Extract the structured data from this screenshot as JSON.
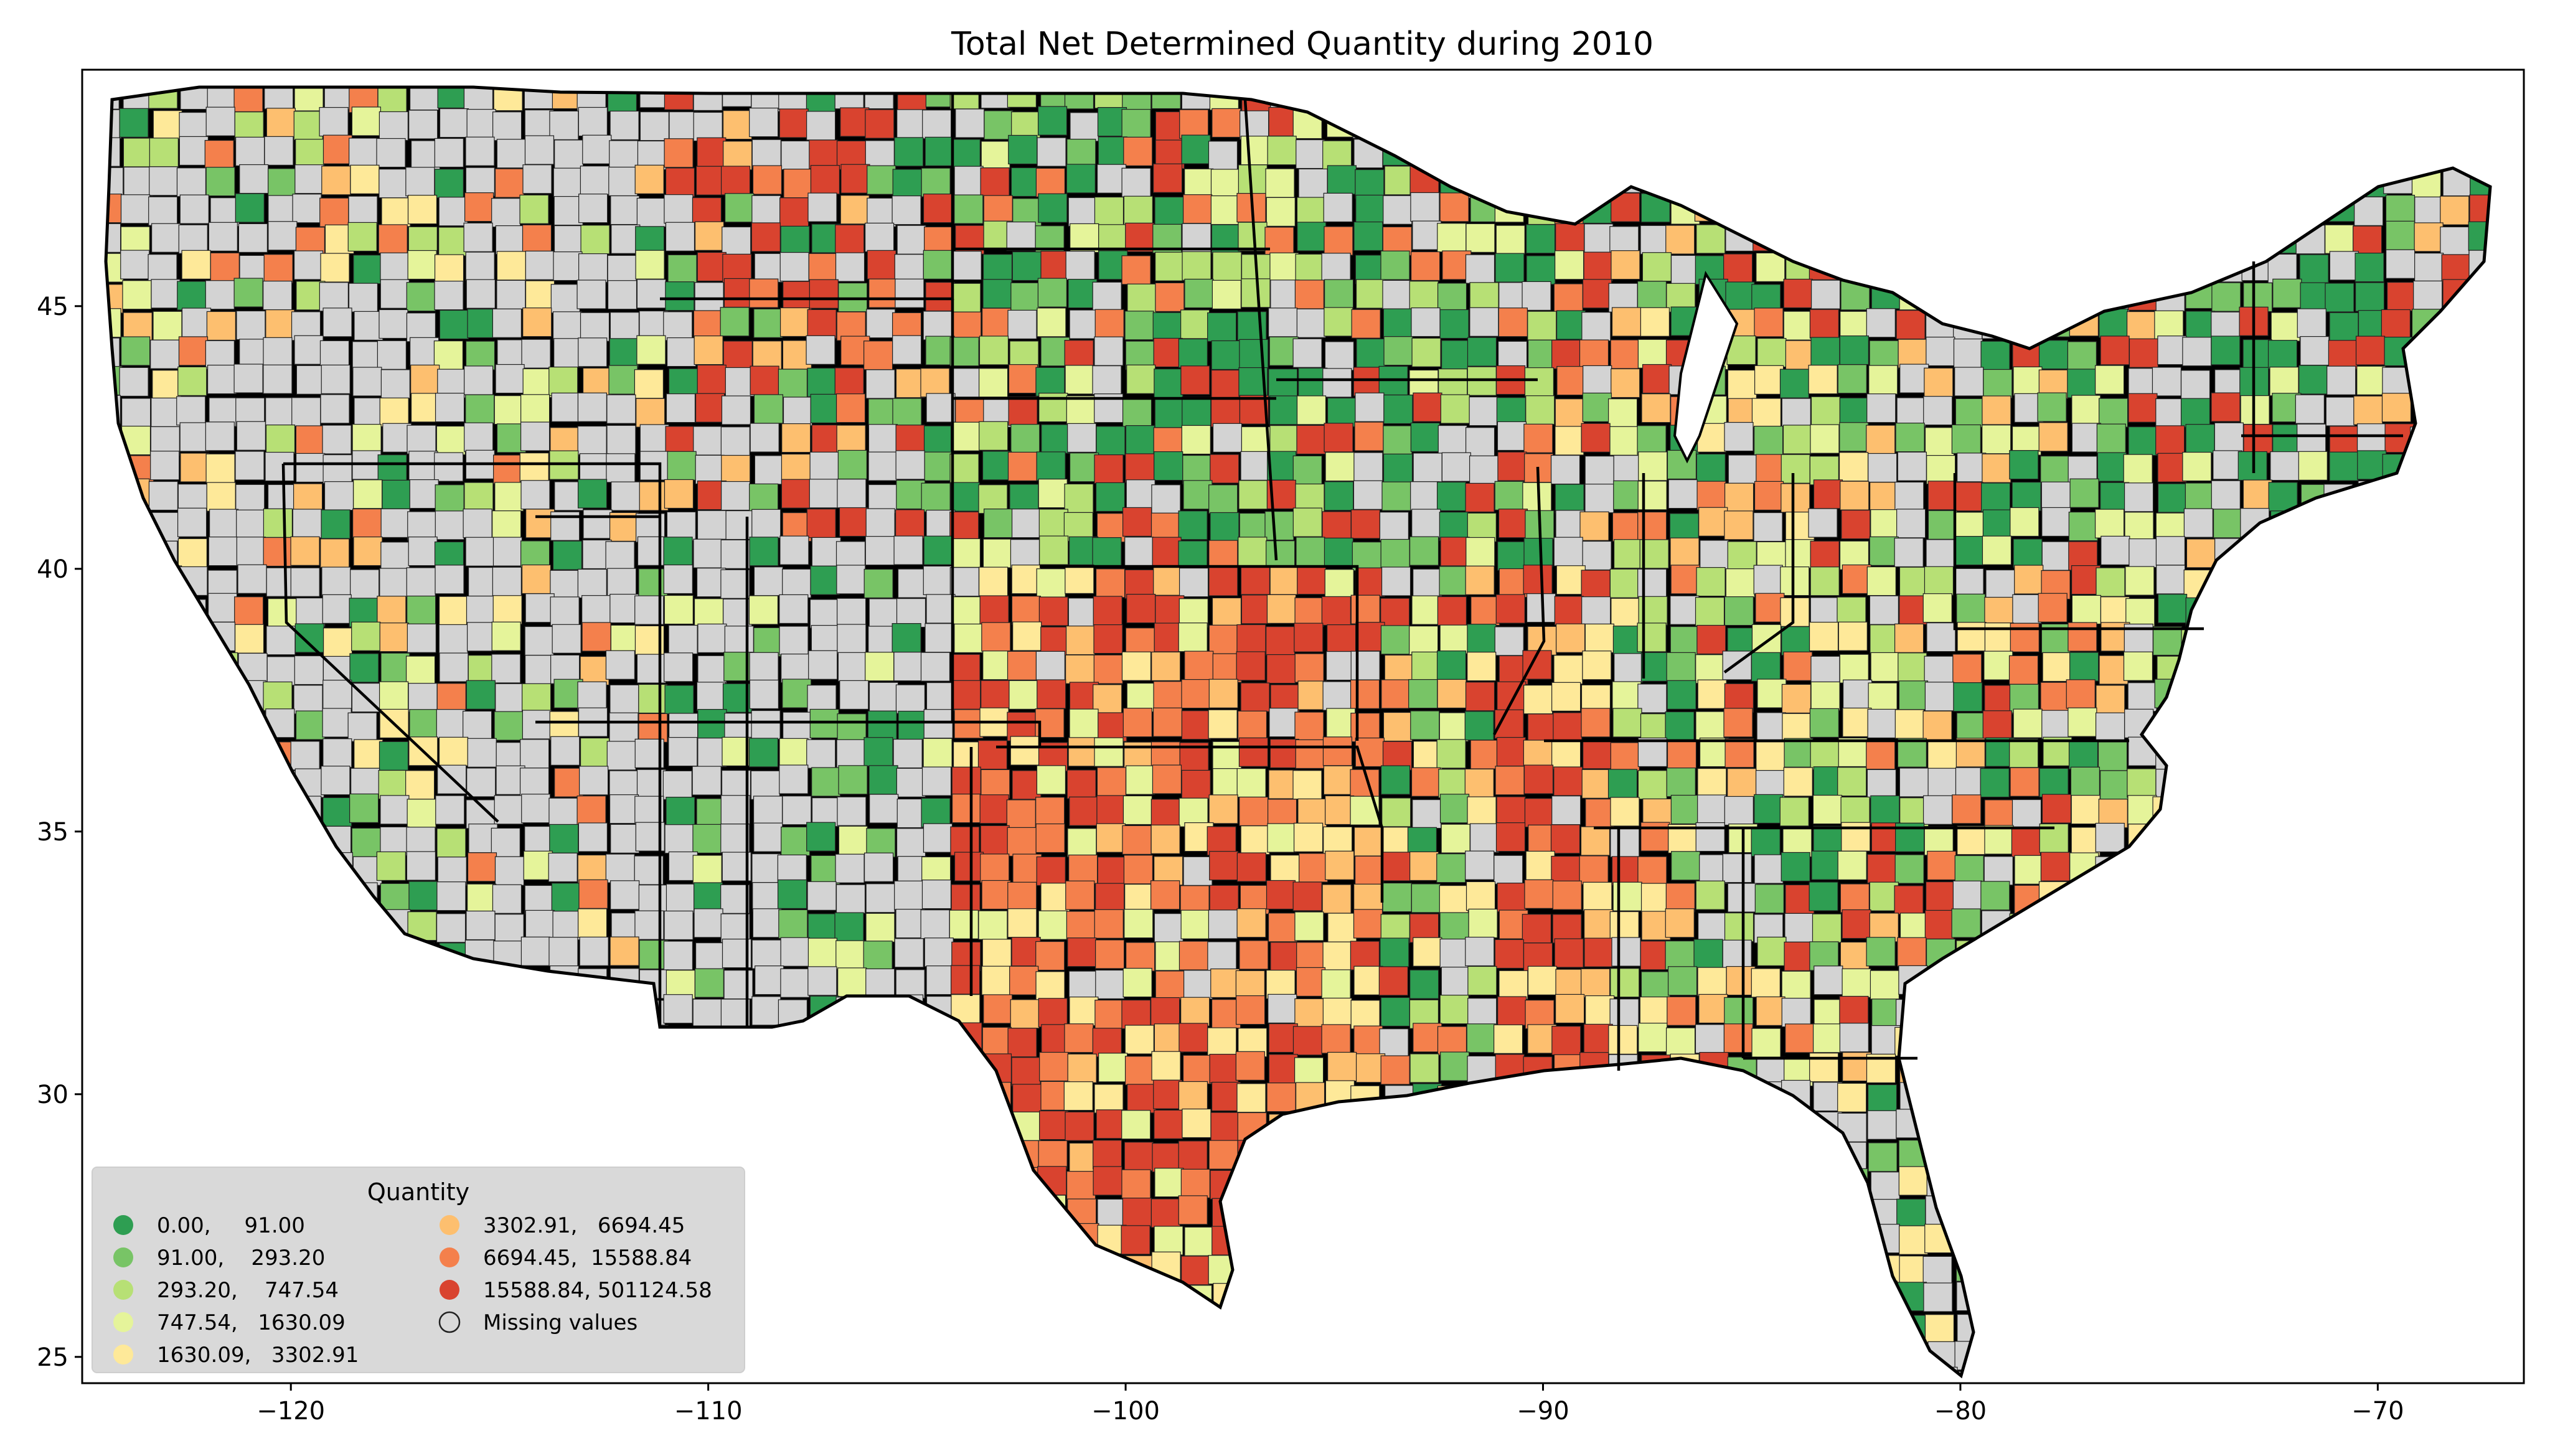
{
  "title": "Total Net Determined Quantity during 2010",
  "axes": {
    "x_ticks": [
      {
        "value": -120,
        "label": "−120"
      },
      {
        "value": -110,
        "label": "−110"
      },
      {
        "value": -100,
        "label": "−100"
      },
      {
        "value": -90,
        "label": "−90"
      },
      {
        "value": -80,
        "label": "−80"
      },
      {
        "value": -70,
        "label": "−70"
      }
    ],
    "y_ticks": [
      {
        "value": 45,
        "label": "45"
      },
      {
        "value": 40,
        "label": "40"
      },
      {
        "value": 35,
        "label": "35"
      },
      {
        "value": 30,
        "label": "30"
      },
      {
        "value": 25,
        "label": "25"
      }
    ],
    "xlim": [
      -125,
      -66.5
    ],
    "ylim": [
      24.5,
      49.5
    ]
  },
  "legend": {
    "title": "Quantity",
    "placement": "lower-left",
    "items": [
      {
        "label": "0.00,     91.00",
        "color": "#2e9e52"
      },
      {
        "label": "91.00,    293.20",
        "color": "#78c466"
      },
      {
        "label": "293.20,    747.54",
        "color": "#b7e075"
      },
      {
        "label": "747.54,   1630.09",
        "color": "#e5f49a"
      },
      {
        "label": "1630.09,   3302.91",
        "color": "#fee999"
      },
      {
        "label": "3302.91,   6694.45",
        "color": "#fdbf6f"
      },
      {
        "label": "6694.45,  15588.84",
        "color": "#f4804c"
      },
      {
        "label": "15588.84, 501124.58",
        "color": "#d9432f"
      },
      {
        "label": "Missing values",
        "color": "#d3d3d3"
      }
    ]
  },
  "colors": {
    "missing": "#d3d3d3",
    "legend_background": "#d8d8d8",
    "border": "#000000"
  },
  "chart_data": {
    "type": "choropleth",
    "title": "Total Net Determined Quantity during 2010",
    "xlabel": "",
    "ylabel": "",
    "xlim": [
      -125,
      -66.5
    ],
    "ylim": [
      24.5,
      49.5
    ],
    "legend_title": "Quantity",
    "bins": [
      [
        0.0,
        91.0
      ],
      [
        91.0,
        293.2
      ],
      [
        293.2,
        747.54
      ],
      [
        747.54,
        1630.09
      ],
      [
        1630.09,
        3302.91
      ],
      [
        3302.91,
        6694.45
      ],
      [
        6694.45,
        15588.84
      ],
      [
        15588.84,
        501124.58
      ]
    ],
    "missing_label": "Missing values",
    "grid": false
  }
}
